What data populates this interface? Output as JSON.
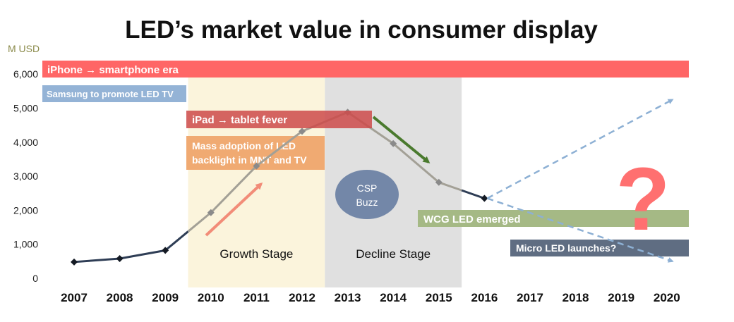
{
  "chart_data": {
    "type": "line",
    "title": "LED’s market value in consumer display",
    "ylabel": "M USD",
    "ylim": [
      0,
      6300
    ],
    "yticks": [
      "0",
      "1,000",
      "2,000",
      "3,000",
      "4,000",
      "5,000",
      "6,000"
    ],
    "ytick_values": [
      0,
      1000,
      2000,
      3000,
      4000,
      5000,
      6000
    ],
    "categories": [
      "2007",
      "2008",
      "2009",
      "2010",
      "2011",
      "2012",
      "2013",
      "2014",
      "2015",
      "2016",
      "2017",
      "2018",
      "2019",
      "2020"
    ],
    "series": [
      {
        "values": [
          480,
          580,
          820,
          1930,
          3300,
          4320,
          4880,
          3960,
          2820,
          2350,
          null,
          null,
          null,
          null
        ]
      }
    ],
    "projections": [
      {
        "from": [
          "2016",
          2350
        ],
        "to": [
          "2020",
          5250
        ]
      },
      {
        "from": [
          "2016",
          2350
        ],
        "to": [
          "2020",
          500
        ]
      }
    ],
    "stages": [
      {
        "name": "Growth Stage",
        "from": "2010",
        "to": "2012"
      },
      {
        "name": "Decline Stage",
        "from": "2013",
        "to": "2015"
      }
    ],
    "annotations": [
      "iPhone → smartphone era",
      "Samsung to promote LED TV",
      "iPad → tablet fever",
      "Mass adoption of LED",
      "backlight in MNT and TV",
      "WCG LED emerged",
      "Micro LED launches?"
    ],
    "bubble": [
      "CSP",
      "Buzz"
    ],
    "question_mark": "?",
    "grid": false,
    "legend": "none",
    "colors": {
      "line_dark": "#2e3d55",
      "line_light": "#a3a096",
      "marker_dark": "#141a24",
      "marker_light": "#8a8a8a",
      "growth_band": "#fbf4dc",
      "decline_band": "#e0e0e0",
      "iphone": "#ff6666",
      "samsung": "#94b3d6",
      "ipad": "#cc4a4a",
      "mass_adoption": "#f0aa72",
      "wcg": "#a5b985",
      "micro": "#5f6d82",
      "csp": "#7387a8",
      "growth_arrow": "#f28c78",
      "decline_arrow": "#4a7a2e",
      "projection": "#8db0d4",
      "question": "#ff7070"
    }
  }
}
